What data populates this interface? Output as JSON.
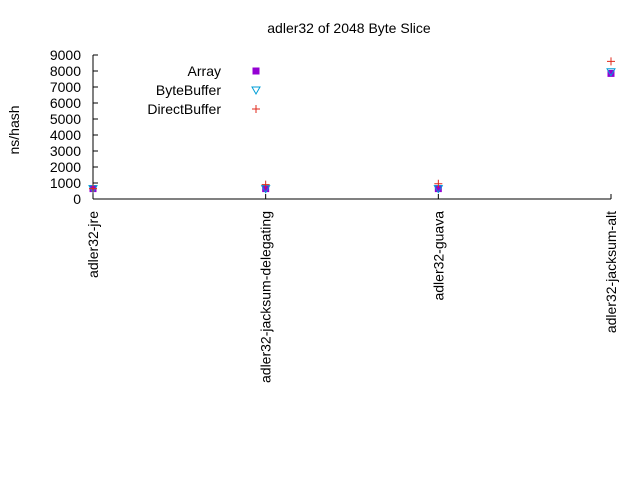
{
  "chart_data": {
    "type": "scatter",
    "title": "adler32 of 2048 Byte Slice",
    "xlabel": "",
    "ylabel": "ns/hash",
    "categories": [
      "adler32-jre",
      "adler32-jacksum-delegating",
      "adler32-guava",
      "adler32-jacksum-alt"
    ],
    "ylim": [
      0,
      9000
    ],
    "yticks": [
      0,
      1000,
      2000,
      3000,
      4000,
      5000,
      6000,
      7000,
      8000,
      9000
    ],
    "grid": false,
    "legend": "top-left",
    "series": [
      {
        "name": "Array",
        "marker": "filled-square",
        "color": "#9400d3",
        "values": [
          650,
          650,
          650,
          7850
        ]
      },
      {
        "name": "ByteBuffer",
        "marker": "open-triangle-down",
        "color": "#009ed7",
        "values": [
          650,
          650,
          650,
          7950
        ]
      },
      {
        "name": "DirectBuffer",
        "marker": "plus",
        "color": "#e0291b",
        "values": [
          650,
          900,
          950,
          8600
        ]
      }
    ]
  }
}
